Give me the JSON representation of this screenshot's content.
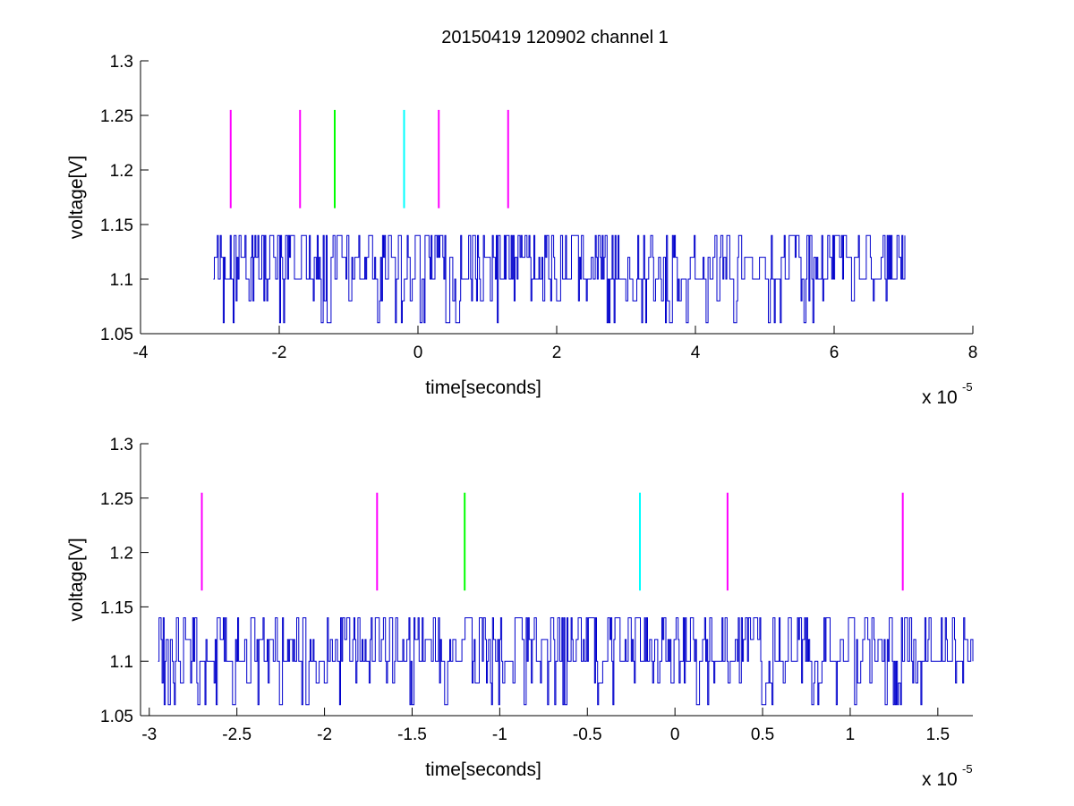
{
  "figure": {
    "title": "20150419 120902 channel 1"
  },
  "chart_data": [
    {
      "type": "line",
      "title": "20150419 120902 channel 1",
      "xlabel": "time[seconds]",
      "ylabel": "voltage[V]",
      "x_scale_label": "x 10",
      "x_scale_exponent": "-5",
      "xlim": [
        -4,
        8
      ],
      "ylim": [
        1.05,
        1.3
      ],
      "x_ticks": [
        -4,
        -2,
        0,
        2,
        4,
        6,
        8
      ],
      "x_tick_labels": [
        "-4",
        "-2",
        "0",
        "2",
        "4",
        "6",
        "8"
      ],
      "y_ticks": [
        1.05,
        1.1,
        1.15,
        1.2,
        1.25,
        1.3
      ],
      "y_tick_labels": [
        "1.05",
        "1.1",
        "1.15",
        "1.2",
        "1.25",
        "1.3"
      ],
      "grid": false,
      "signal": {
        "color": "#0000cc",
        "x_range": [
          -2.95,
          7.02
        ],
        "levels": [
          1.06,
          1.08,
          1.1,
          1.12,
          1.14
        ],
        "baseline": 1.1,
        "samples": 700
      },
      "markers": [
        {
          "x": -2.7,
          "y_range": [
            1.165,
            1.255
          ],
          "color": "#ff00ff"
        },
        {
          "x": -1.7,
          "y_range": [
            1.165,
            1.255
          ],
          "color": "#ff00ff"
        },
        {
          "x": -1.2,
          "y_range": [
            1.165,
            1.255
          ],
          "color": "#00ff00"
        },
        {
          "x": -0.2,
          "y_range": [
            1.165,
            1.255
          ],
          "color": "#00ffff"
        },
        {
          "x": 0.3,
          "y_range": [
            1.165,
            1.255
          ],
          "color": "#ff00ff"
        },
        {
          "x": 1.3,
          "y_range": [
            1.165,
            1.255
          ],
          "color": "#ff00ff"
        }
      ]
    },
    {
      "type": "line",
      "title": "",
      "xlabel": "time[seconds]",
      "ylabel": "voltage[V]",
      "x_scale_label": "x 10",
      "x_scale_exponent": "-5",
      "xlim": [
        -3.05,
        1.7
      ],
      "ylim": [
        1.05,
        1.3
      ],
      "x_ticks": [
        -3,
        -2.5,
        -2,
        -1.5,
        -1,
        -0.5,
        0,
        0.5,
        1,
        1.5
      ],
      "x_tick_labels": [
        "-3",
        "-2.5",
        "-2",
        "-1.5",
        "-1",
        "-0.5",
        "0",
        "0.5",
        "1",
        "1.5"
      ],
      "y_ticks": [
        1.05,
        1.1,
        1.15,
        1.2,
        1.25,
        1.3
      ],
      "y_tick_labels": [
        "1.05",
        "1.1",
        "1.15",
        "1.2",
        "1.25",
        "1.3"
      ],
      "grid": false,
      "signal": {
        "color": "#0000cc",
        "x_range": [
          -2.95,
          1.7
        ],
        "levels": [
          1.06,
          1.08,
          1.1,
          1.12,
          1.14
        ],
        "baseline": 1.1,
        "samples": 800
      },
      "markers": [
        {
          "x": -2.7,
          "y_range": [
            1.165,
            1.255
          ],
          "color": "#ff00ff"
        },
        {
          "x": -1.7,
          "y_range": [
            1.165,
            1.255
          ],
          "color": "#ff00ff"
        },
        {
          "x": -1.2,
          "y_range": [
            1.165,
            1.255
          ],
          "color": "#00ff00"
        },
        {
          "x": -0.2,
          "y_range": [
            1.165,
            1.255
          ],
          "color": "#00ffff"
        },
        {
          "x": 0.3,
          "y_range": [
            1.165,
            1.255
          ],
          "color": "#ff00ff"
        },
        {
          "x": 1.3,
          "y_range": [
            1.165,
            1.255
          ],
          "color": "#ff00ff"
        }
      ]
    }
  ]
}
